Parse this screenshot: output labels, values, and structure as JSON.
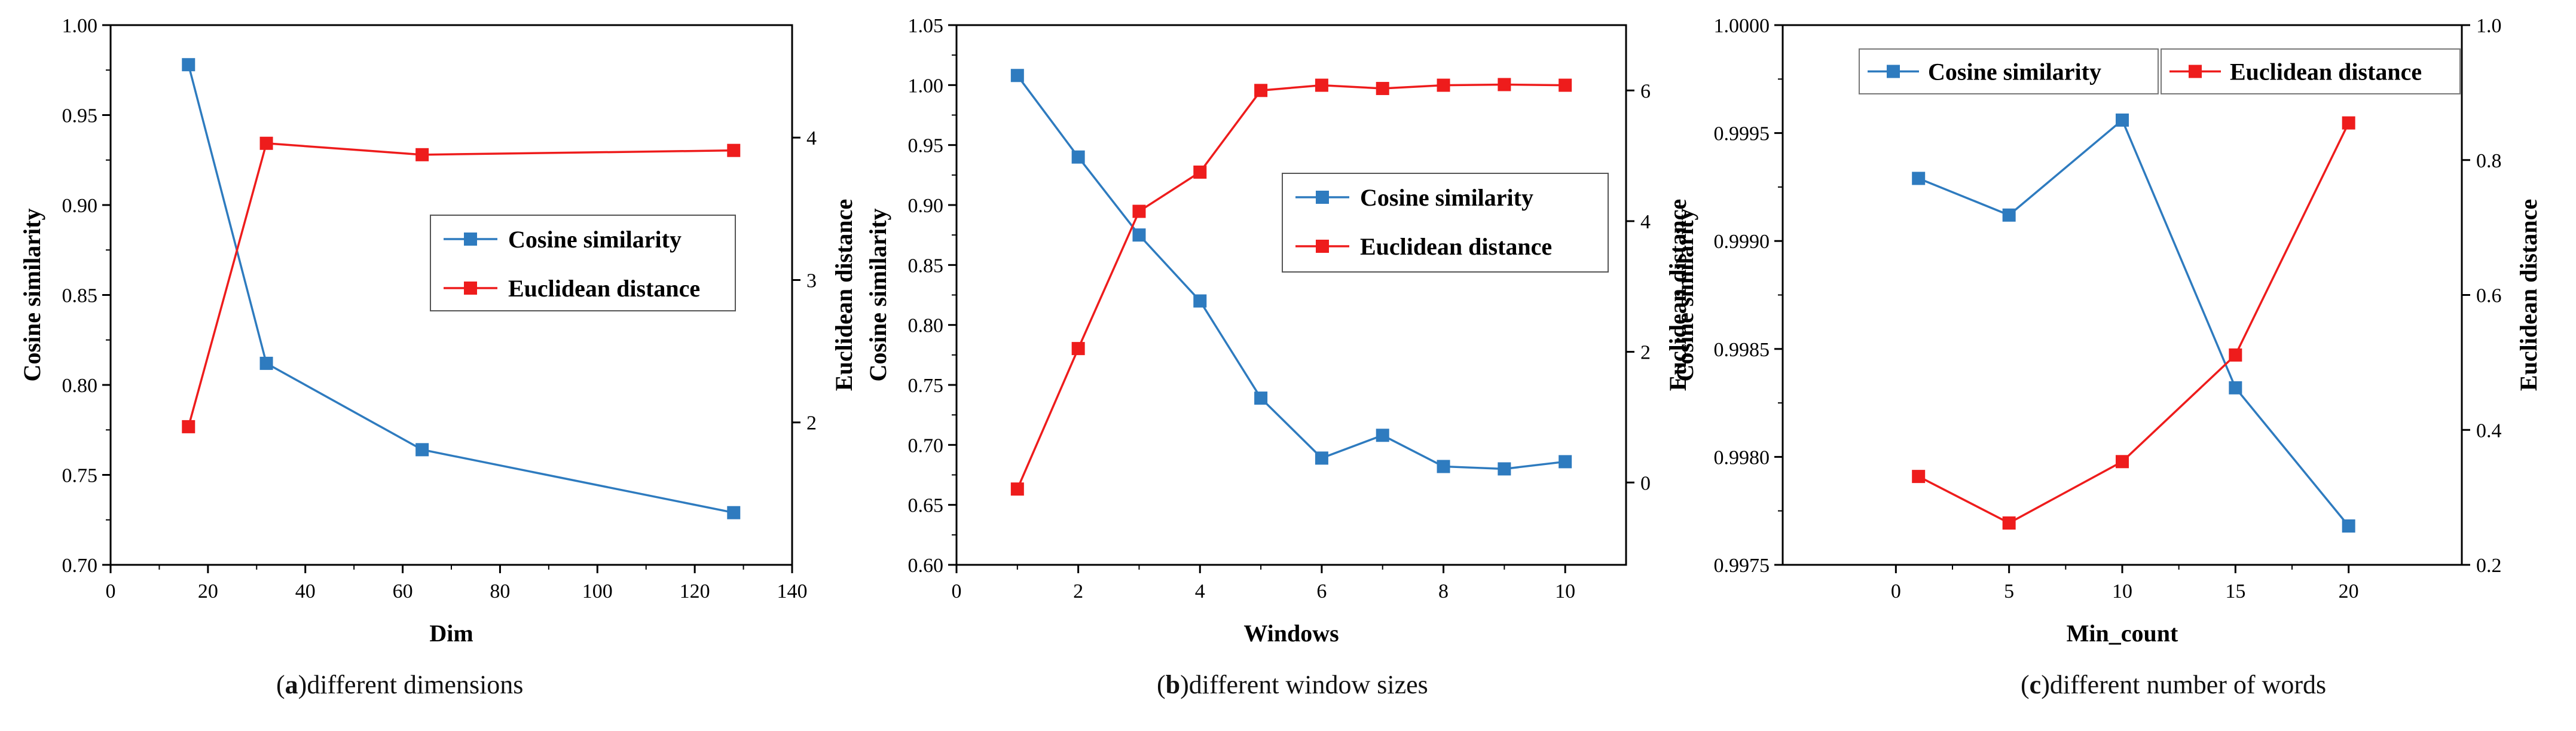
{
  "chart_data": [
    {
      "type": "line",
      "panel": "a",
      "caption_letter": "a",
      "caption_text": "different dimensions",
      "xlabel": "Dim",
      "ylabel": "Cosine similarity",
      "y2label": "Euclidean distance",
      "xlim": [
        0,
        140
      ],
      "ylim": [
        0.7,
        1.0
      ],
      "y2lim": [
        1.0,
        4.79
      ],
      "xticks": [
        0,
        20,
        40,
        60,
        80,
        100,
        120,
        140
      ],
      "yticks": [
        "0.70",
        "0.75",
        "0.80",
        "0.85",
        "0.90",
        "0.95",
        "1.00"
      ],
      "y2ticks": [
        2,
        3,
        4
      ],
      "legend_placement": "center-right",
      "series": [
        {
          "name": "Cosine similarity",
          "axis": "left",
          "color": "#2e7bbf",
          "x": [
            16,
            32,
            64,
            128
          ],
          "values": [
            0.978,
            0.812,
            0.764,
            0.729
          ]
        },
        {
          "name": "Euclidean distance",
          "axis": "right",
          "color": "#ee1c1c",
          "x": [
            16,
            32,
            64,
            128
          ],
          "values": [
            1.97,
            3.96,
            3.88,
            3.91
          ]
        }
      ]
    },
    {
      "type": "line",
      "panel": "b",
      "caption_letter": "b",
      "caption_text": "different window sizes",
      "xlabel": "Windows",
      "ylabel": "Cosine similarity",
      "y2label": "Euclidean distance",
      "xlim": [
        0,
        11
      ],
      "ylim": [
        0.6,
        1.05
      ],
      "y2lim": [
        -1.26,
        7.0
      ],
      "xticks": [
        0,
        2,
        4,
        6,
        8,
        10
      ],
      "yticks": [
        "0.60",
        "0.65",
        "0.70",
        "0.75",
        "0.80",
        "0.85",
        "0.90",
        "0.95",
        "1.00",
        "1.05"
      ],
      "y2ticks": [
        0,
        2,
        4,
        6
      ],
      "legend_placement": "upper-right",
      "series": [
        {
          "name": "Cosine similarity",
          "axis": "left",
          "color": "#2e7bbf",
          "x": [
            1,
            2,
            3,
            4,
            5,
            6,
            7,
            8,
            9,
            10
          ],
          "values": [
            1.008,
            0.94,
            0.875,
            0.82,
            0.739,
            0.689,
            0.708,
            0.682,
            0.68,
            0.686
          ]
        },
        {
          "name": "Euclidean distance",
          "axis": "right",
          "color": "#ee1c1c",
          "x": [
            1,
            2,
            3,
            4,
            5,
            6,
            7,
            8,
            9,
            10
          ],
          "values": [
            -0.1,
            2.05,
            4.15,
            4.75,
            6.0,
            6.08,
            6.03,
            6.08,
            6.09,
            6.08
          ]
        }
      ]
    },
    {
      "type": "line",
      "panel": "c",
      "caption_letter": "c",
      "caption_text": "different number of words",
      "xlabel": "Min_count",
      "ylabel": "Cosine similarity",
      "y2label": "Euclidean distance",
      "xlim": [
        -5,
        25
      ],
      "ylim": [
        0.9975,
        1.0
      ],
      "y2lim": [
        0.2,
        1.0
      ],
      "xticks": [
        0,
        5,
        10,
        15,
        20
      ],
      "yticks": [
        "0.9975",
        "0.9980",
        "0.9985",
        "0.9990",
        "0.9995",
        "1.0000"
      ],
      "y2ticks": [
        "0.2",
        "0.4",
        "0.6",
        "0.8",
        "1.0"
      ],
      "legend_placement": "top",
      "series": [
        {
          "name": "Cosine similarity",
          "axis": "left",
          "color": "#2e7bbf",
          "x": [
            1,
            5,
            10,
            15,
            20
          ],
          "values": [
            0.99929,
            0.99912,
            0.99956,
            0.99832,
            0.99768
          ]
        },
        {
          "name": "Euclidean distance",
          "axis": "right",
          "color": "#ee1c1c",
          "x": [
            1,
            5,
            10,
            15,
            20
          ],
          "values": [
            0.331,
            0.262,
            0.353,
            0.511,
            0.855
          ]
        }
      ]
    }
  ]
}
